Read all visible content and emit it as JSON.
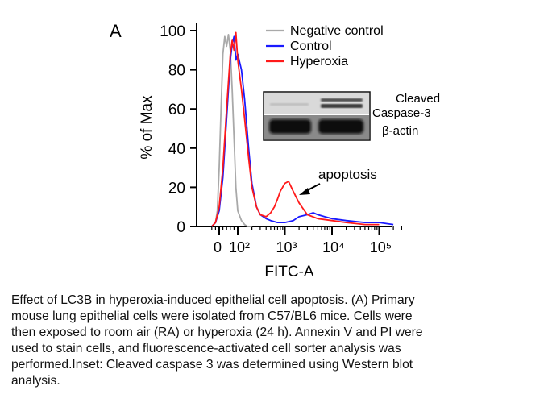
{
  "panel_label": "A",
  "chart_data": {
    "type": "line",
    "title": "",
    "xlabel": "FITC-A",
    "ylabel": "% of Max",
    "x_scale": "biexponential",
    "x_ticks": [
      {
        "value": 0,
        "label": "0"
      },
      {
        "value": 100,
        "label": "10²"
      },
      {
        "value": 1000,
        "label": "10³"
      },
      {
        "value": 10000,
        "label": "10⁴"
      },
      {
        "value": 100000,
        "label": "10⁵"
      }
    ],
    "y_ticks": [
      0,
      20,
      40,
      60,
      80,
      100
    ],
    "ylim": [
      0,
      100
    ],
    "legend_position": "top-right",
    "series": [
      {
        "name": "Negative control",
        "color": "#a9a9a9",
        "x": [
          -40,
          -20,
          -10,
          0,
          10,
          20,
          30,
          40,
          50,
          60,
          70,
          80,
          90,
          100,
          120,
          140,
          160,
          200
        ],
        "y": [
          0,
          2,
          8,
          30,
          60,
          88,
          97,
          92,
          98,
          90,
          70,
          45,
          20,
          8,
          3,
          1,
          0,
          0
        ]
      },
      {
        "name": "Control",
        "color": "#1a1aff",
        "x": [
          -40,
          -20,
          0,
          20,
          40,
          60,
          70,
          80,
          90,
          100,
          120,
          140,
          170,
          200,
          250,
          300,
          400,
          500,
          700,
          1000,
          1500,
          2000,
          3000,
          4000,
          5000,
          7000,
          10000,
          20000,
          50000,
          100000,
          200000
        ],
        "y": [
          0,
          2,
          8,
          25,
          55,
          85,
          93,
          97,
          85,
          88,
          80,
          65,
          40,
          22,
          10,
          6,
          4,
          3,
          2,
          2,
          3,
          5,
          6,
          7,
          6,
          5,
          4,
          3,
          2,
          2,
          1
        ]
      },
      {
        "name": "Hyperoxia",
        "color": "#ff1a1a",
        "x": [
          -40,
          -20,
          0,
          20,
          40,
          60,
          70,
          80,
          90,
          100,
          120,
          140,
          170,
          200,
          250,
          300,
          400,
          500,
          600,
          700,
          800,
          1000,
          1200,
          1500,
          2000,
          3000,
          5000,
          10000,
          20000,
          50000,
          100000
        ],
        "y": [
          0,
          2,
          10,
          30,
          60,
          88,
          95,
          90,
          99,
          85,
          70,
          55,
          35,
          20,
          10,
          6,
          5,
          7,
          10,
          14,
          18,
          22,
          23,
          18,
          12,
          6,
          4,
          3,
          2,
          1,
          1
        ]
      }
    ],
    "annotations": [
      {
        "text": "apoptosis",
        "points_to": "Hyperoxia peak near 10³"
      }
    ]
  },
  "inset": {
    "labels": [
      "Cleaved",
      "Caspase-3",
      "β-actin"
    ]
  },
  "caption": {
    "lines": [
      "Effect of LC3B in hyperoxia-induced epithelial cell apoptosis. (A) Primary",
      "mouse lung epithelial cells were isolated from C57/BL6 mice. Cells were",
      "then exposed to room air (RA) or hyperoxia (24 h). Annexin V and PI were",
      "used to stain cells, and fluorescence-activated cell sorter analysis was",
      "performed.Inset: Cleaved caspase 3 was determined using Western blot",
      "analysis."
    ]
  }
}
